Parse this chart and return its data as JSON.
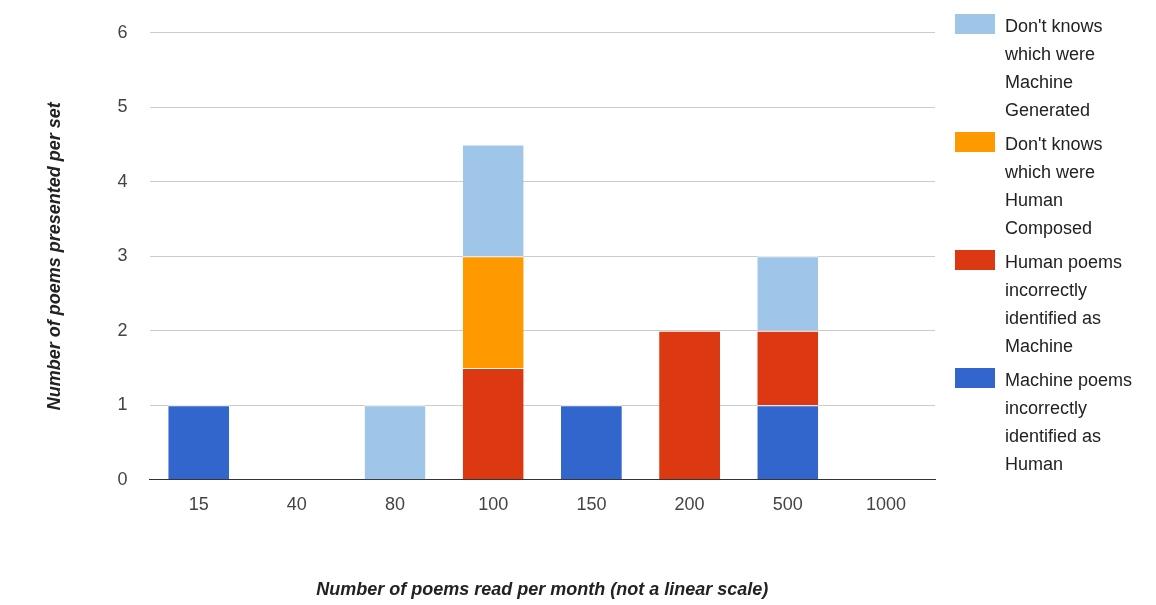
{
  "chart_data": {
    "type": "bar",
    "stacked": true,
    "xlabel": "Number of poems read per month (not a linear scale)",
    "ylabel": "Number of poems presented per set",
    "categories": [
      "15",
      "40",
      "80",
      "100",
      "150",
      "200",
      "500",
      "1000"
    ],
    "series": [
      {
        "name": "Machine poems incorrectly identified as Human",
        "color": "#3366cc",
        "values": [
          1,
          0,
          0,
          0,
          1,
          0,
          1,
          0
        ]
      },
      {
        "name": "Human poems incorrectly identified as Machine",
        "color": "#dc3912",
        "values": [
          0,
          0,
          0,
          1.5,
          0,
          2,
          1,
          0
        ]
      },
      {
        "name": "Don't knows which were Human Composed",
        "color": "#ff9900",
        "values": [
          0,
          0,
          0,
          1.5,
          0,
          0,
          0,
          0
        ]
      },
      {
        "name": "Don't knows which were Machine Generated",
        "color": "#9fc5e8",
        "values": [
          0,
          0,
          1,
          1.5,
          0,
          0,
          1,
          0
        ]
      }
    ],
    "ylim": [
      0,
      6
    ],
    "yticks": [
      0,
      1,
      2,
      3,
      4,
      5,
      6
    ],
    "grid": "y",
    "legend": "right"
  }
}
